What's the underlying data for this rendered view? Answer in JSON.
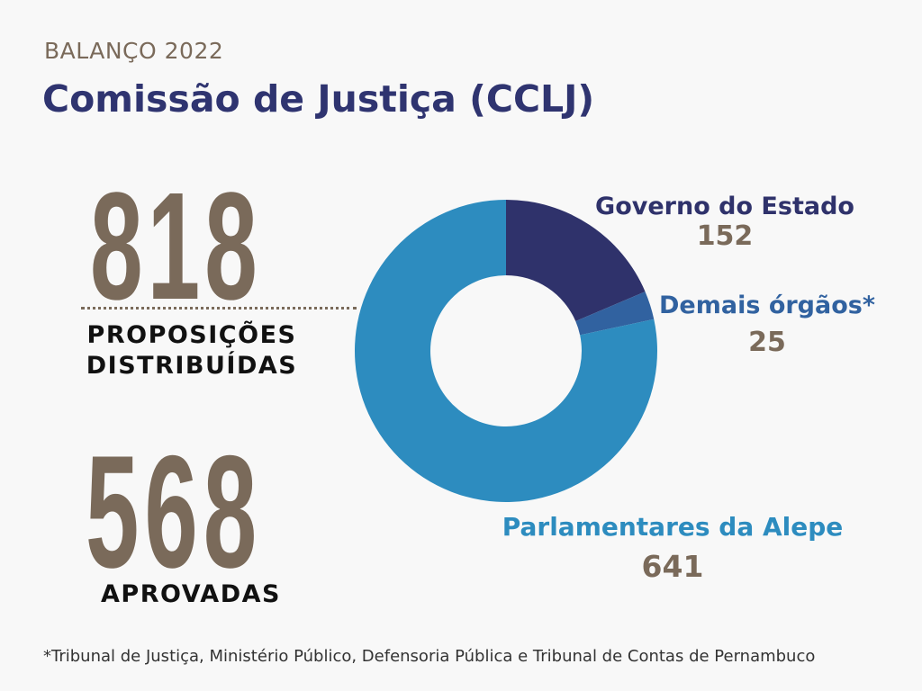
{
  "header": {
    "eyebrow": "BALANÇO 2022",
    "title": "Comissão de Justiça (CCLJ)"
  },
  "stats": {
    "distributed_value": "818",
    "distributed_line1": "PROPOSIÇÕES",
    "distributed_line2": "DISTRIBUÍDAS",
    "approved_value": "568",
    "approved_label": "APROVADAS"
  },
  "chart_data": {
    "type": "pie",
    "style": "donut",
    "series": [
      {
        "name": "Governo do Estado",
        "value": 152,
        "value_label": "152",
        "color": "#2f326b"
      },
      {
        "name": "Demais órgãos*",
        "value": 25,
        "value_label": "25",
        "color": "#3162a0"
      },
      {
        "name": "Parlamentares da Alepe",
        "value": 641,
        "value_label": "641",
        "color": "#2d8cbf"
      }
    ]
  },
  "footnote": "*Tribunal de Justiça, Ministério Público, Defensoria Pública e Tribunal de Contas de Pernambuco",
  "colors": {
    "title": "#2f3470",
    "accent_brown": "#7a6a5a",
    "background": "#f8f8f8"
  }
}
